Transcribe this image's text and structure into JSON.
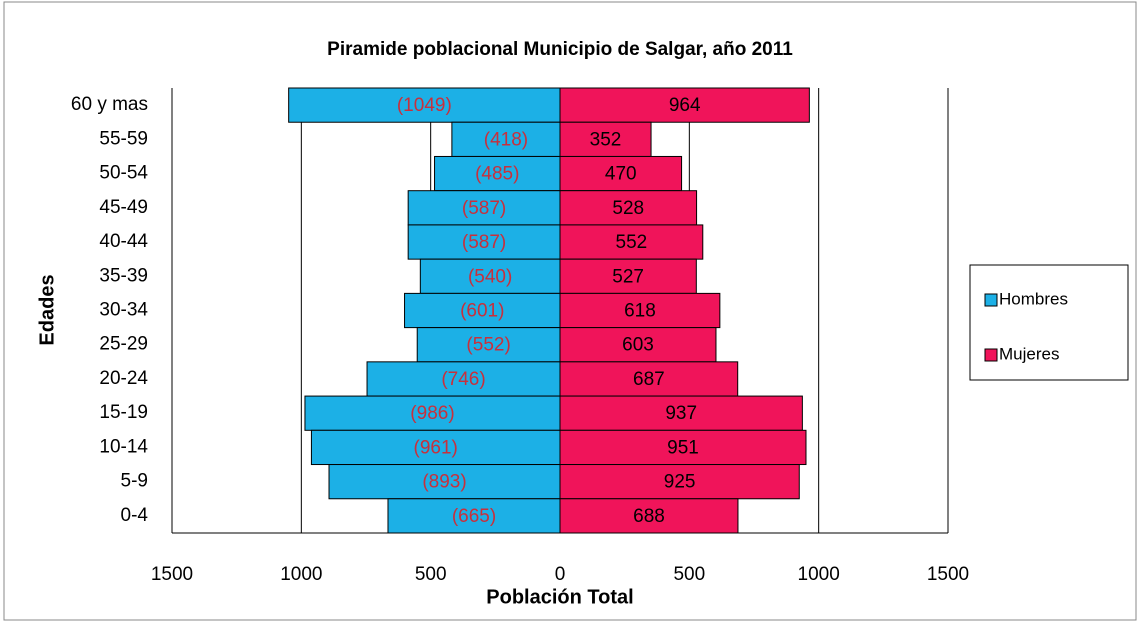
{
  "chart_data": {
    "type": "pyramid",
    "title": "Piramide poblacional Municipio de Salgar, año 2011",
    "x_label": "Población Total",
    "y_label": "Edades",
    "categories": [
      "60 y mas",
      "55-59",
      "50-54",
      "45-49",
      "40-44",
      "35-39",
      "30-34",
      "25-29",
      "20-24",
      "15-19",
      "10-14",
      "5-9",
      "0-4"
    ],
    "series": [
      {
        "name": "Hombres",
        "color": "#1cb0e6",
        "label_color": "#c8303c",
        "values": [
          -1049,
          -418,
          -485,
          -587,
          -587,
          -540,
          -601,
          -552,
          -746,
          -986,
          -961,
          -893,
          -665
        ],
        "value_labels": [
          "(1049)",
          "(418)",
          "(485)",
          "(587)",
          "(587)",
          "(540)",
          "(601)",
          "(552)",
          "(746)",
          "(986)",
          "(961)",
          "(893)",
          "(665)"
        ]
      },
      {
        "name": "Mujeres",
        "color": "#f0145a",
        "label_color": "#000000",
        "values": [
          964,
          352,
          470,
          528,
          552,
          527,
          618,
          603,
          687,
          937,
          951,
          925,
          688
        ]
      }
    ],
    "xlim": [
      -1500,
      1500
    ],
    "xticks": [
      {
        "value": -1500,
        "label": "1500"
      },
      {
        "value": -1000,
        "label": "1000"
      },
      {
        "value": -500,
        "label": "500"
      },
      0,
      500,
      1000,
      1500
    ],
    "grid": true,
    "legend": "right"
  }
}
